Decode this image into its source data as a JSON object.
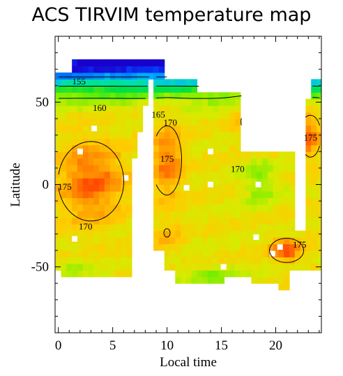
{
  "title": "ACS TIRVIM temperature map",
  "chart_data": {
    "type": "heatmap",
    "title": "ACS TIRVIM temperature map",
    "xlabel": "Local time",
    "ylabel": "Latitude",
    "xlim": [
      -0.3,
      24.2
    ],
    "ylim": [
      -90,
      90
    ],
    "xticks": [
      0,
      5,
      10,
      15,
      20
    ],
    "yticks": [
      -50,
      0,
      50
    ],
    "colorscale": [
      "#1a00cc",
      "#0044ff",
      "#00b4ff",
      "#00e0b0",
      "#00e040",
      "#6aee00",
      "#d4ec00",
      "#ffcc00",
      "#ff8a00",
      "#ff3000",
      "#e00000"
    ],
    "value_range": [
      150,
      178
    ],
    "contour_levels": [
      155,
      160,
      165,
      170,
      175
    ],
    "contour_labels": [
      {
        "text": "155",
        "x": 1.9,
        "y": 62
      },
      {
        "text": "160",
        "x": 3.8,
        "y": 46
      },
      {
        "text": "165",
        "x": 9.2,
        "y": 42
      },
      {
        "text": "170",
        "x": 10.3,
        "y": 37
      },
      {
        "text": "175",
        "x": 10.0,
        "y": 15
      },
      {
        "text": "170",
        "x": 16.5,
        "y": 9
      },
      {
        "text": "175",
        "x": 23.2,
        "y": 28
      },
      {
        "text": "175",
        "x": 0.6,
        "y": -2
      },
      {
        "text": "170",
        "x": 2.5,
        "y": -26
      },
      {
        "text": "175",
        "x": 22.2,
        "y": -37
      }
    ],
    "grid": false
  }
}
